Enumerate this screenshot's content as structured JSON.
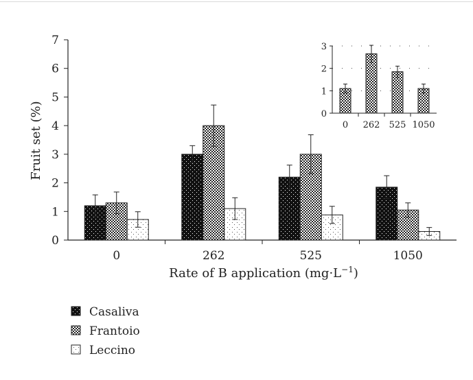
{
  "chart_data": [
    {
      "type": "bar",
      "title": "",
      "xlabel": "Rate of B application (mg·L⁻¹)",
      "xlabel_main": "Rate of B application (mg·L",
      "xlabel_sup": "−1",
      "xlabel_close": ")",
      "ylabel": "Fruit set (%)",
      "ylim": [
        0,
        7
      ],
      "yticks": [
        "0",
        "1",
        "2",
        "3",
        "4",
        "5",
        "6",
        "7"
      ],
      "categories": [
        "0",
        "262",
        "525",
        "1050"
      ],
      "series": [
        {
          "name": "Casaliva",
          "values": [
            1.2,
            3.0,
            2.2,
            1.85
          ],
          "errors": [
            0.38,
            0.3,
            0.42,
            0.4
          ]
        },
        {
          "name": "Frantoio",
          "values": [
            1.3,
            4.0,
            3.0,
            1.05
          ],
          "errors": [
            0.38,
            0.72,
            0.68,
            0.25
          ]
        },
        {
          "name": "Leccino",
          "values": [
            0.72,
            1.1,
            0.88,
            0.3
          ],
          "errors": [
            0.27,
            0.38,
            0.3,
            0.14
          ]
        }
      ],
      "legend_position": "bottom-left",
      "grid": false
    },
    {
      "type": "bar",
      "title": "",
      "xlabel": "",
      "ylabel": "",
      "ylim": [
        0,
        3
      ],
      "yticks": [
        "0",
        "1",
        "2",
        "3"
      ],
      "categories": [
        "0",
        "262",
        "525",
        "1050"
      ],
      "series": [
        {
          "values": [
            1.1,
            2.65,
            1.85,
            1.1
          ],
          "errors": [
            0.2,
            0.38,
            0.25,
            0.2
          ]
        }
      ],
      "grid": "dotted horizontal at y ticks"
    }
  ],
  "legend": [
    {
      "name": "Casaliva"
    },
    {
      "name": "Frantoio"
    },
    {
      "name": "Leccino"
    }
  ]
}
